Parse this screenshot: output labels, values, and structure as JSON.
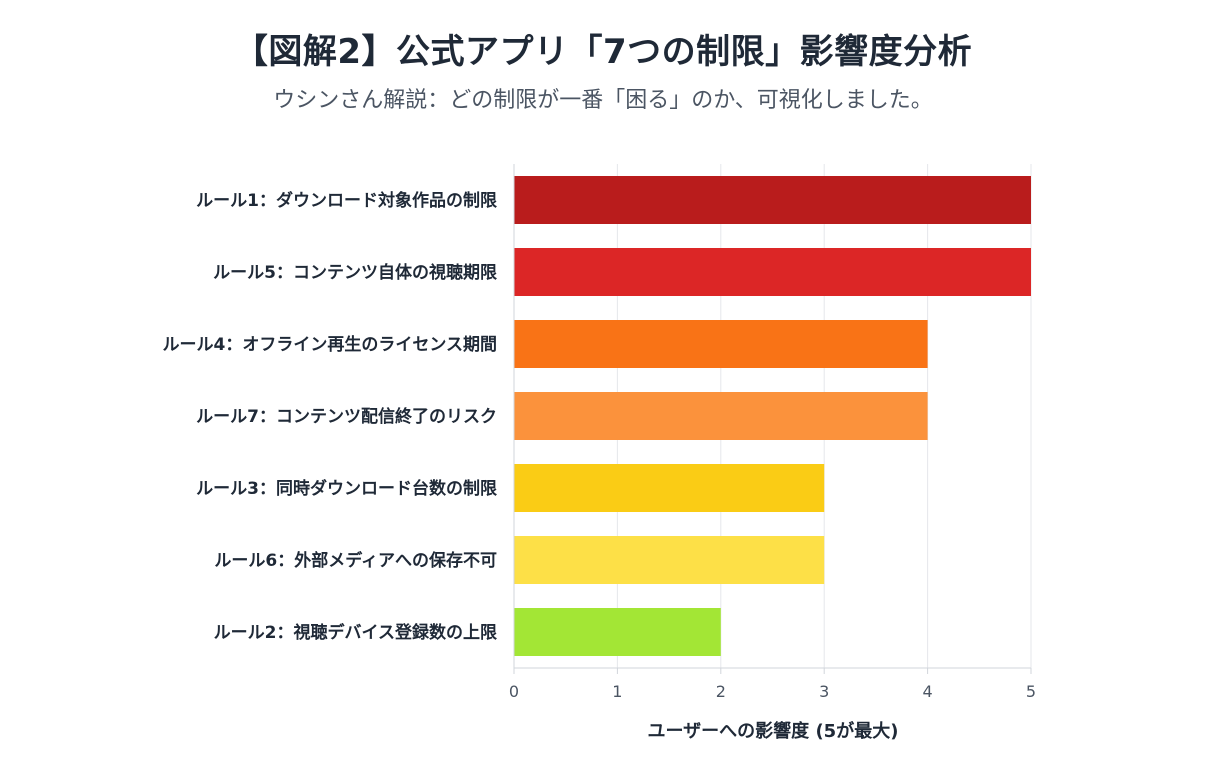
{
  "chart_data": {
    "type": "bar",
    "orientation": "horizontal",
    "title": "【図解2】公式アプリ「7つの制限」影響度分析",
    "subtitle": "ウシンさん解説：どの制限が一番「困る」のか、可視化しました。",
    "xlabel": "ユーザーへの影響度 (5が最大)",
    "ylabel": "",
    "xlim": [
      0,
      5
    ],
    "ticks": [
      "0",
      "1",
      "2",
      "3",
      "4",
      "5"
    ],
    "grid": true,
    "categories": [
      "ルール1：ダウンロード対象作品の制限",
      "ルール5：コンテンツ自体の視聴期限",
      "ルール4：オフライン再生のライセンス期間",
      "ルール7：コンテンツ配信終了のリスク",
      "ルール3：同時ダウンロード台数の制限",
      "ルール6：外部メディアへの保存不可",
      "ルール2：視聴デバイス登録数の上限"
    ],
    "values": [
      5,
      5,
      4,
      4,
      3,
      3,
      2
    ],
    "colors": [
      "#b91c1c",
      "#dc2626",
      "#f97316",
      "#fb923c",
      "#facc15",
      "#fde047",
      "#a3e635"
    ],
    "gridline_color": "#e5e7eb",
    "axis_color": "#d1d5db"
  }
}
